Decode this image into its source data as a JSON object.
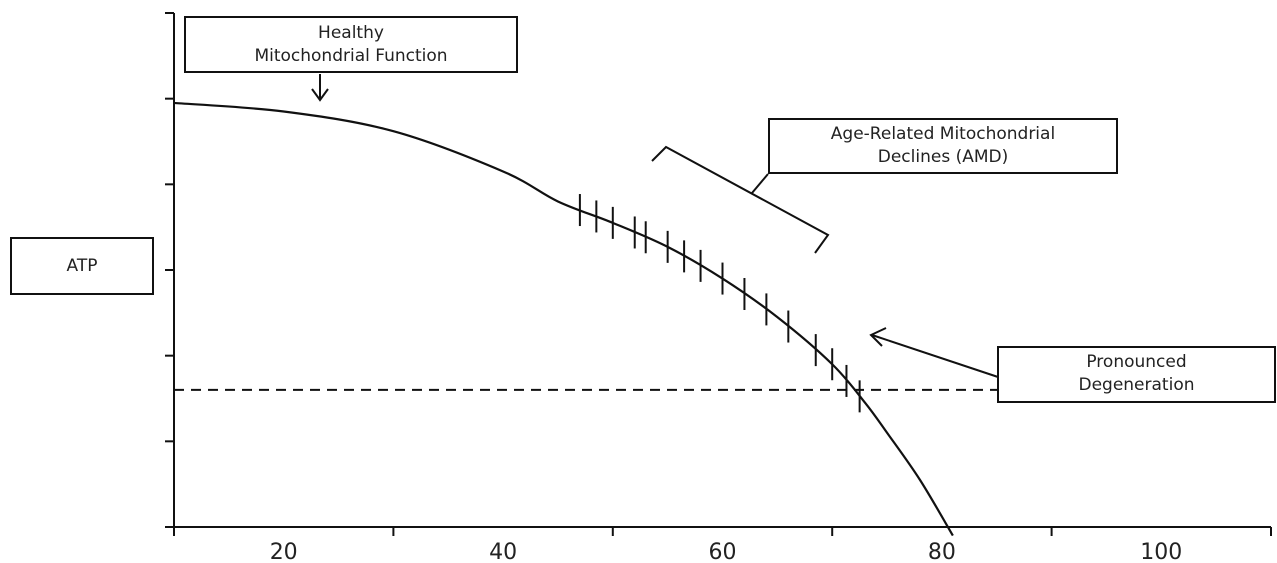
{
  "chart_data": {
    "type": "line",
    "x_ticks": [
      "20",
      "40",
      "60",
      "80",
      "100"
    ],
    "xlim": [
      10,
      110
    ],
    "ylim": [
      0,
      6
    ],
    "grid": false,
    "series": [
      {
        "x": [
          10,
          20,
          30,
          40,
          45,
          50,
          55,
          60,
          65,
          70,
          73,
          75,
          78,
          81
        ],
        "y": [
          4.95,
          4.85,
          4.62,
          4.15,
          3.8,
          3.55,
          3.27,
          2.9,
          2.45,
          1.9,
          1.45,
          1.1,
          0.55,
          -0.1
        ]
      }
    ],
    "threshold_y": 1.6,
    "threshold_x_range": [
      10,
      92
    ],
    "amd_marks_x": [
      47,
      48.5,
      50,
      52,
      53,
      55,
      56.5,
      58,
      60,
      62,
      64,
      66,
      68.5,
      70,
      71.3,
      72.5
    ],
    "annotations": {
      "healthy": [
        "Healthy",
        "Mitochondrial Function"
      ],
      "amd": [
        "Age-Related Mitochondrial",
        "Declines (AMD)"
      ],
      "pronounced": [
        "Pronounced",
        "Degeneration"
      ],
      "ylabel": "ATP"
    }
  }
}
